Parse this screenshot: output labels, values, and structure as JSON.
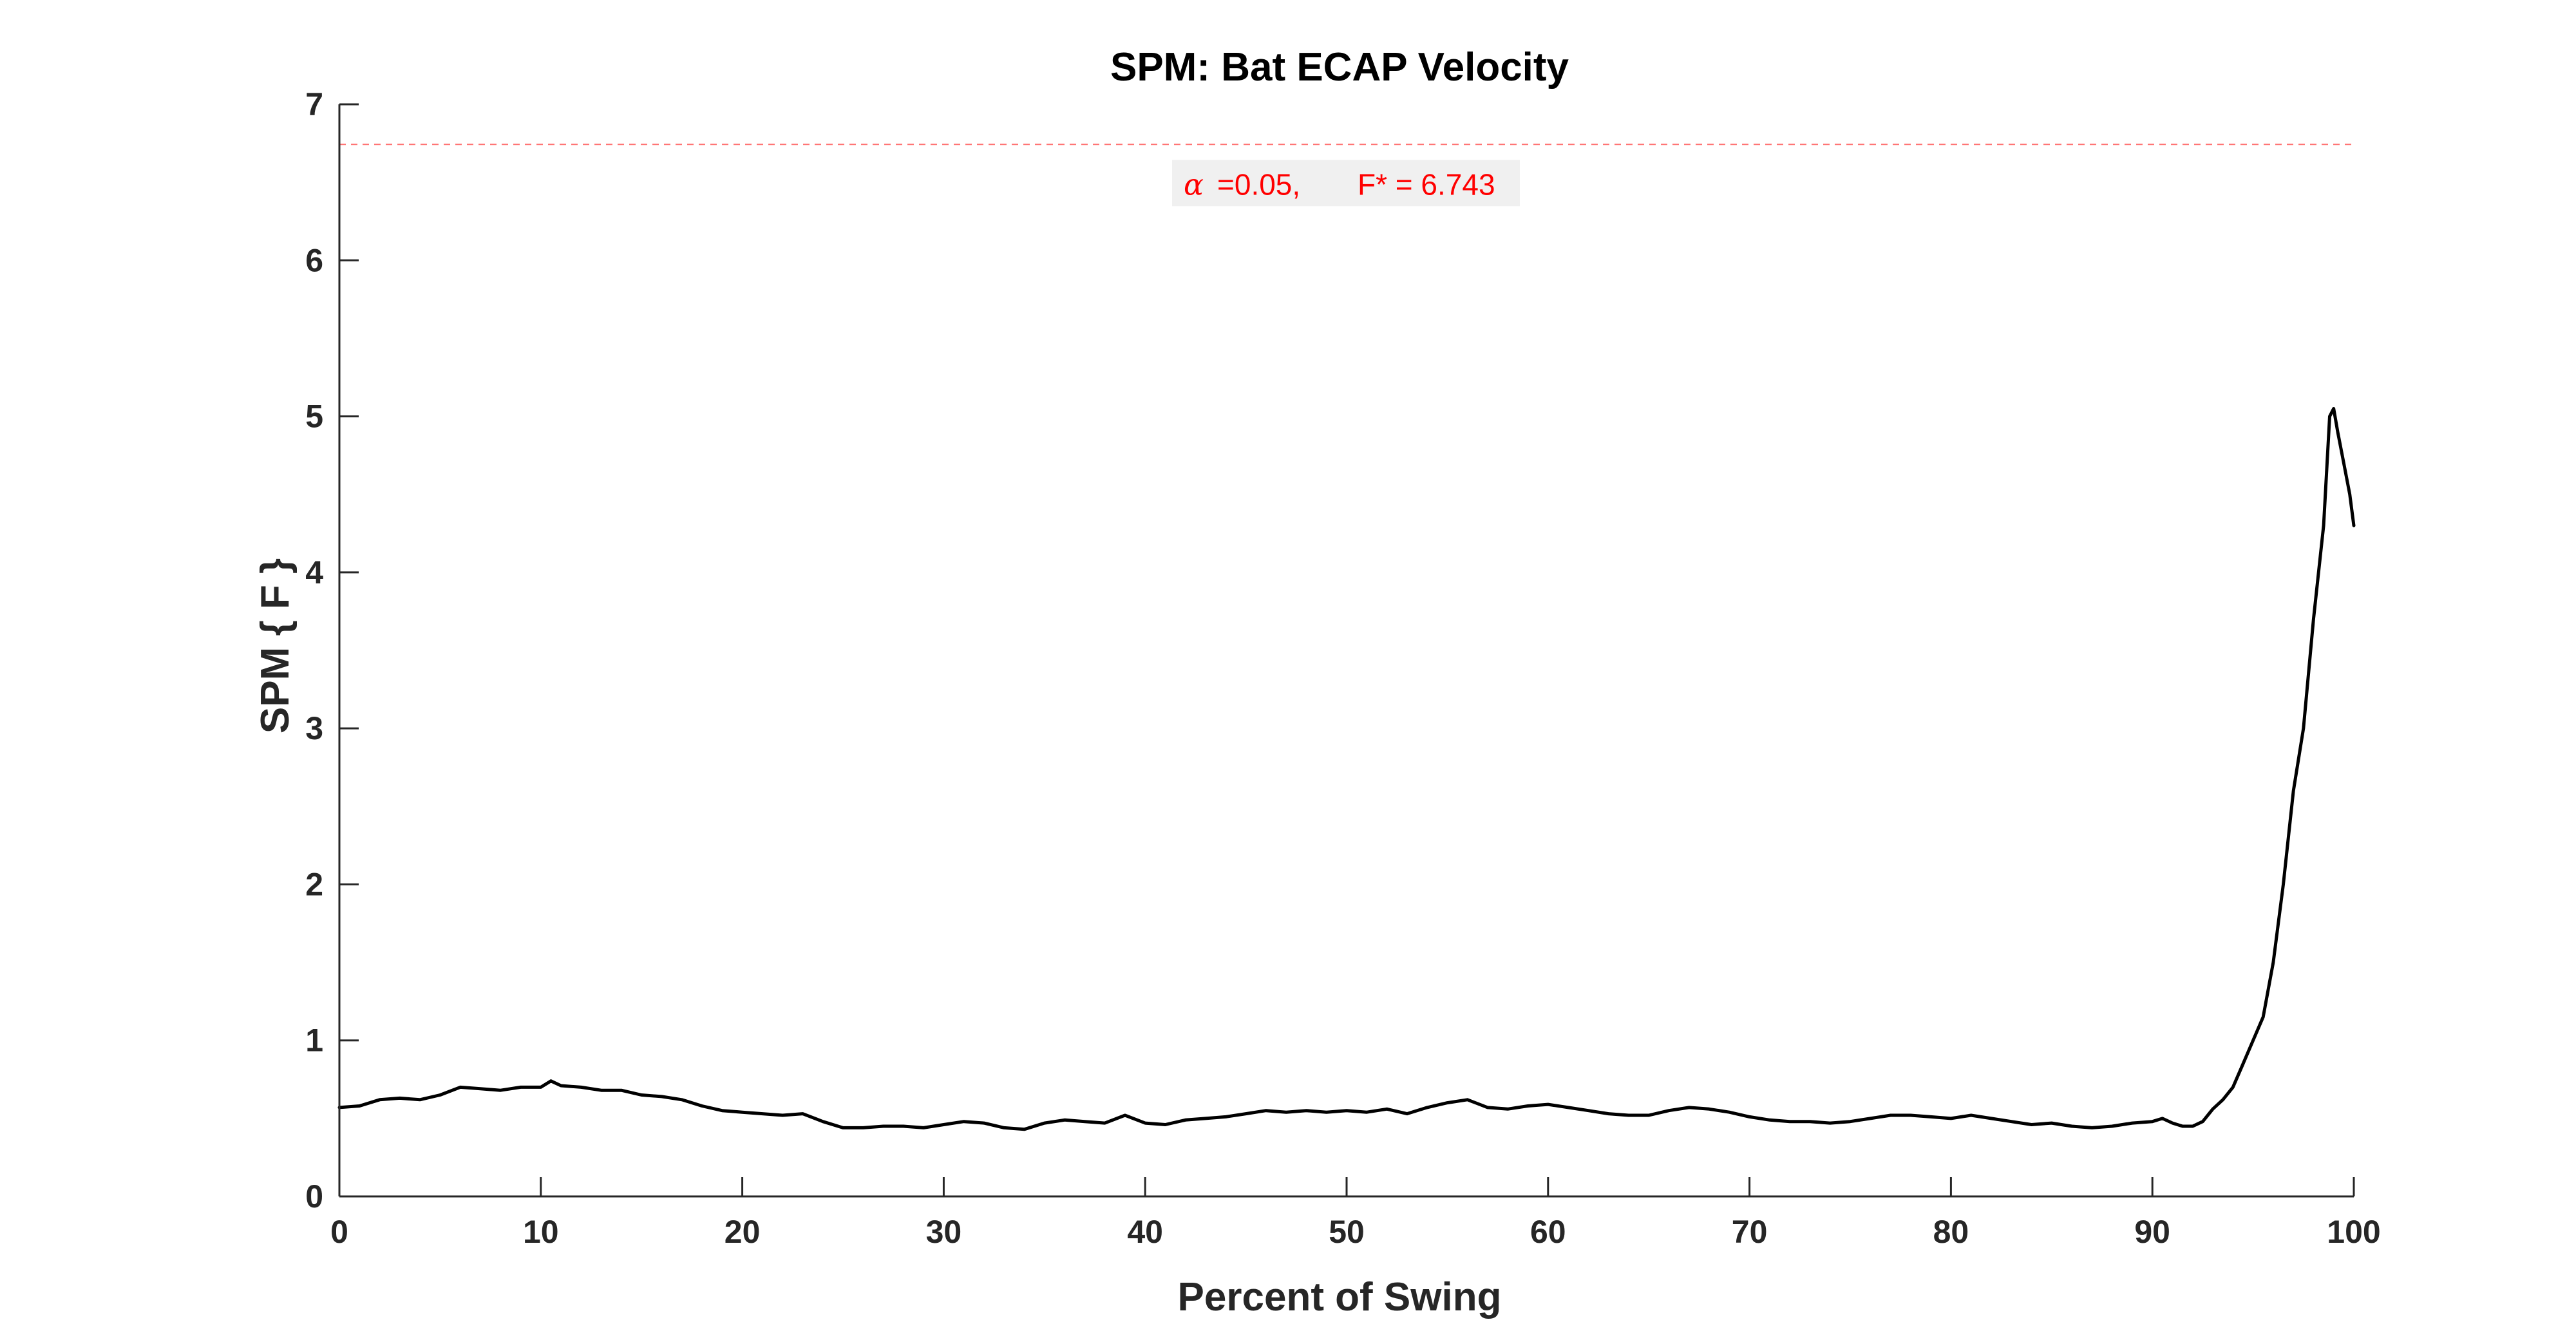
{
  "chart_data": {
    "type": "line",
    "title": "SPM: Bat ECAP Velocity",
    "xlabel": "Percent of Swing",
    "ylabel": "SPM { F }",
    "xlim": [
      0,
      100
    ],
    "ylim": [
      0,
      7
    ],
    "xticks": [
      0,
      10,
      20,
      30,
      40,
      50,
      60,
      70,
      80,
      90,
      100
    ],
    "yticks": [
      0,
      1,
      2,
      3,
      4,
      5,
      6,
      7
    ],
    "grid": false,
    "series": [
      {
        "color": "#000000",
        "x": [
          0,
          1,
          2,
          3,
          4,
          5,
          6,
          7,
          8,
          9,
          10,
          10.5,
          11,
          12,
          13,
          14,
          15,
          16,
          17,
          18,
          19,
          20,
          21,
          22,
          23,
          24,
          25,
          26,
          27,
          28,
          29,
          30,
          31,
          32,
          33,
          34,
          35,
          36,
          37,
          38,
          39,
          40,
          41,
          42,
          43,
          44,
          45,
          46,
          47,
          48,
          49,
          50,
          51,
          52,
          53,
          54,
          55,
          56,
          57,
          58,
          59,
          60,
          61,
          62,
          63,
          64,
          65,
          66,
          67,
          68,
          69,
          70,
          71,
          72,
          73,
          74,
          75,
          76,
          77,
          78,
          79,
          80,
          81,
          82,
          83,
          84,
          85,
          86,
          87,
          88,
          89,
          90,
          90.5,
          91,
          91.5,
          92,
          92.5,
          93,
          93.5,
          94,
          94.5,
          95,
          95.5,
          96,
          96.5,
          97,
          97.5,
          98,
          98.5,
          98.8,
          99,
          99.2,
          99.5,
          99.8,
          100
        ],
        "values": [
          0.57,
          0.58,
          0.62,
          0.63,
          0.62,
          0.65,
          0.7,
          0.69,
          0.68,
          0.7,
          0.7,
          0.74,
          0.71,
          0.7,
          0.68,
          0.68,
          0.65,
          0.64,
          0.62,
          0.58,
          0.55,
          0.54,
          0.53,
          0.52,
          0.53,
          0.48,
          0.44,
          0.44,
          0.45,
          0.45,
          0.44,
          0.46,
          0.48,
          0.47,
          0.44,
          0.43,
          0.47,
          0.49,
          0.48,
          0.47,
          0.52,
          0.47,
          0.46,
          0.49,
          0.5,
          0.51,
          0.53,
          0.55,
          0.54,
          0.55,
          0.54,
          0.55,
          0.54,
          0.56,
          0.53,
          0.57,
          0.6,
          0.62,
          0.57,
          0.56,
          0.58,
          0.59,
          0.57,
          0.55,
          0.53,
          0.52,
          0.52,
          0.55,
          0.57,
          0.56,
          0.54,
          0.51,
          0.49,
          0.48,
          0.48,
          0.47,
          0.48,
          0.5,
          0.52,
          0.52,
          0.51,
          0.5,
          0.52,
          0.5,
          0.48,
          0.46,
          0.47,
          0.45,
          0.44,
          0.45,
          0.47,
          0.48,
          0.5,
          0.47,
          0.45,
          0.45,
          0.48,
          0.56,
          0.62,
          0.7,
          0.85,
          1.0,
          1.15,
          1.5,
          2.0,
          2.6,
          3.0,
          3.7,
          4.3,
          5.0,
          5.05,
          4.9,
          4.7,
          4.5,
          4.3
        ]
      }
    ],
    "threshold": {
      "value": 6.743,
      "color": "#ff0000",
      "label_alpha_symbol": "α",
      "label_alpha_value": "=0.05,",
      "label_fstar": "F* = 6.743"
    }
  }
}
